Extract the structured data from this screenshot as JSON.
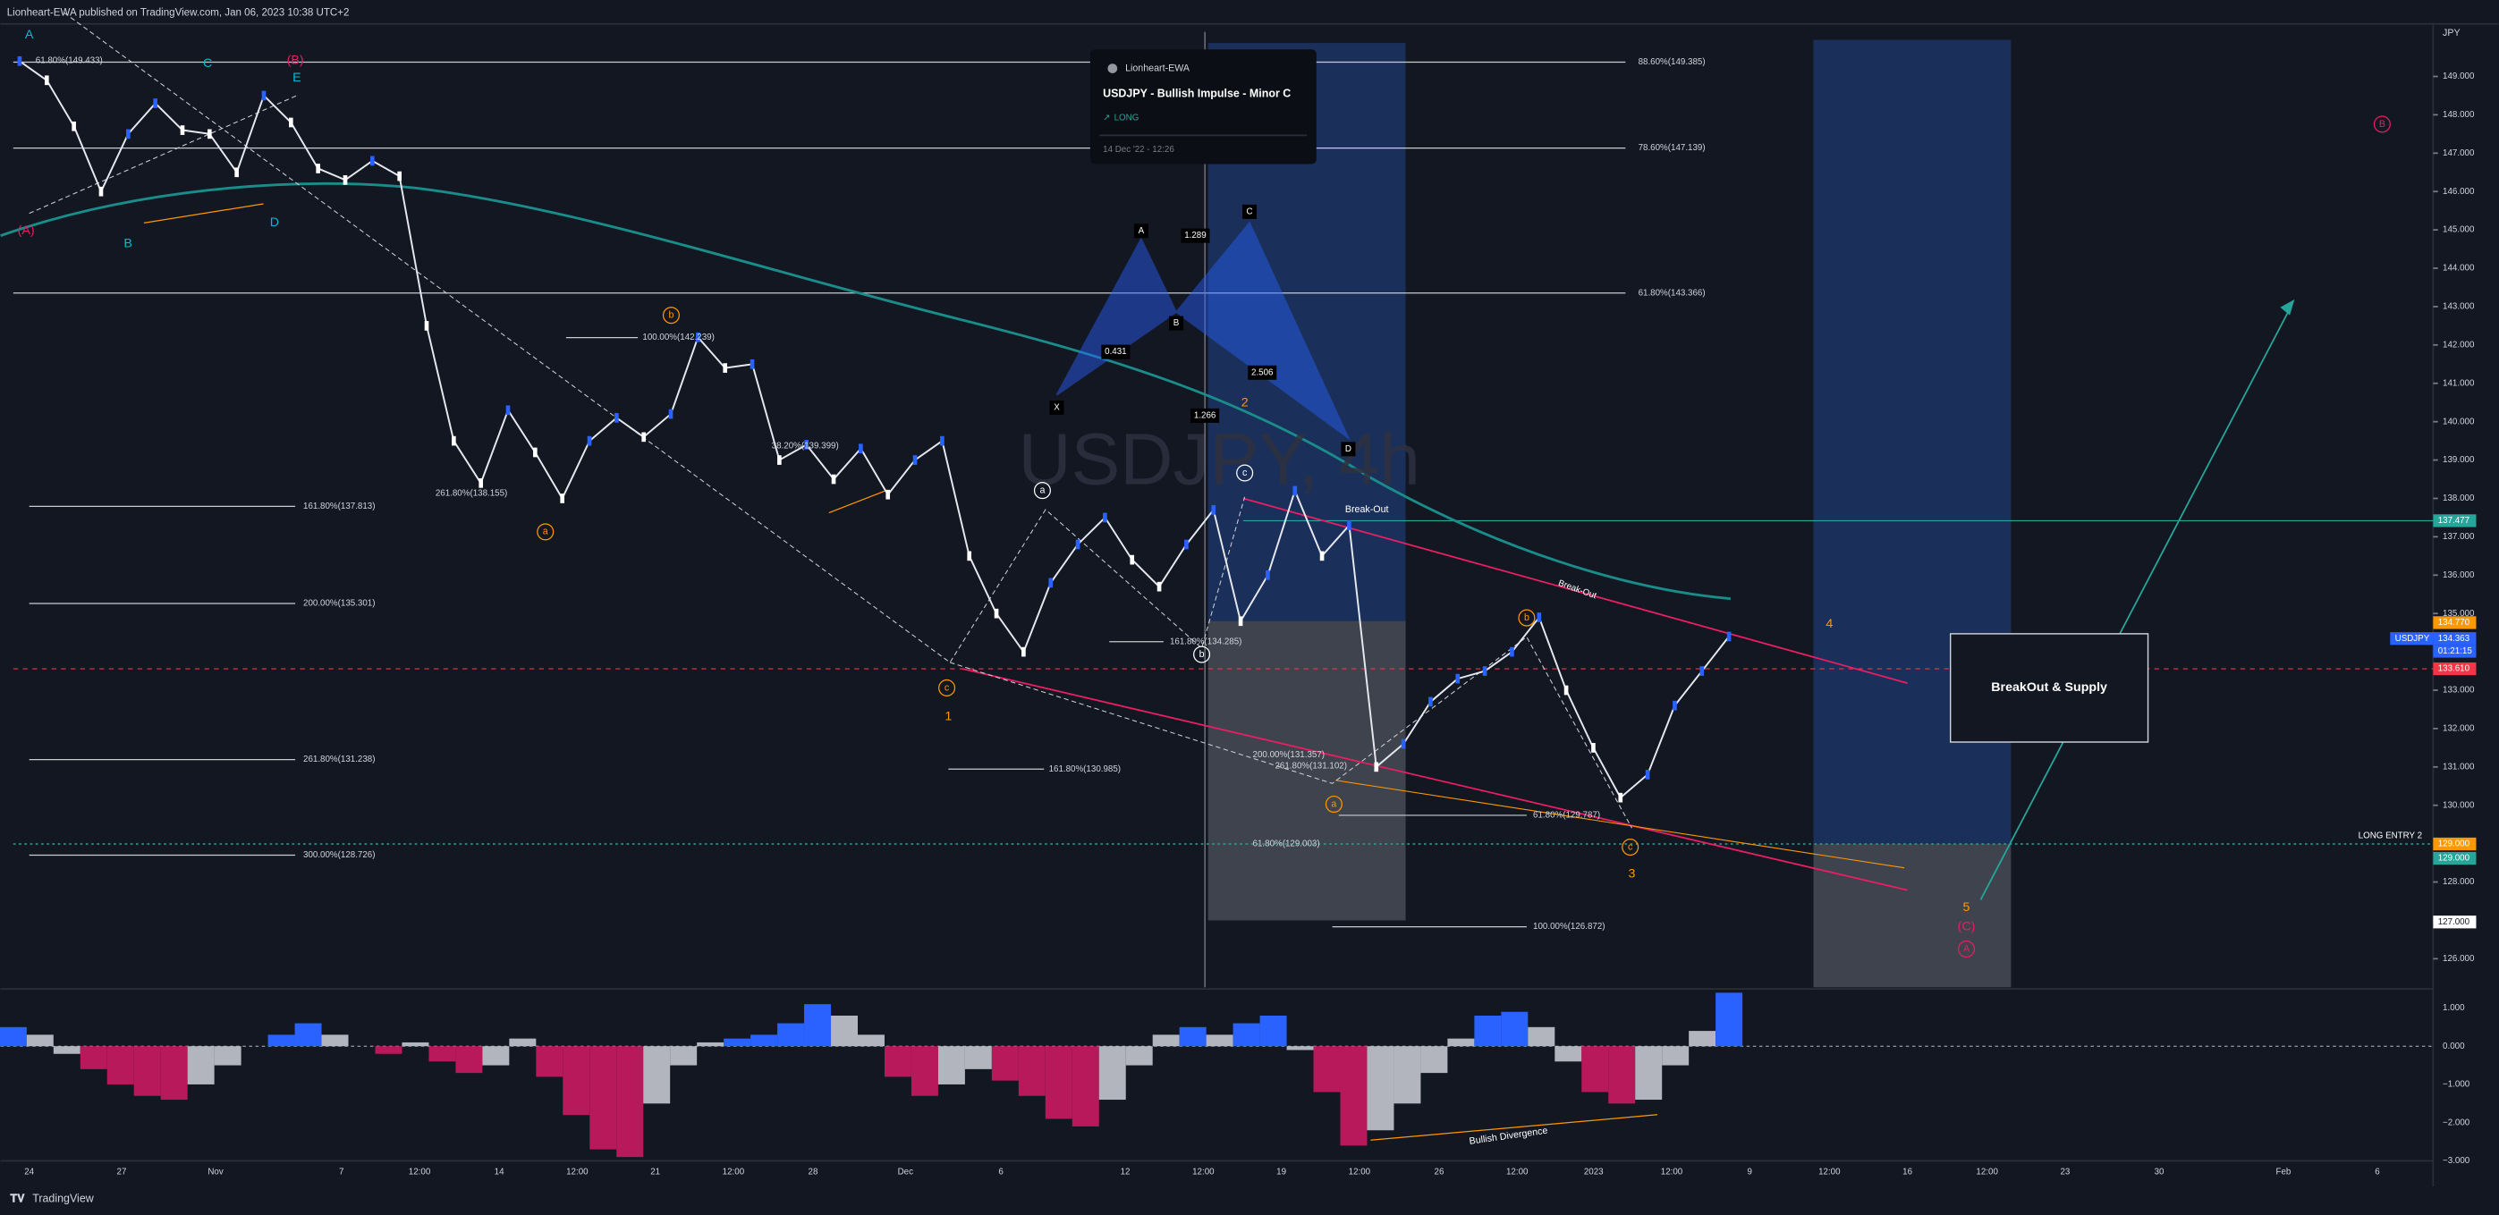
{
  "header": {
    "publisher": "Lionheart-EWA published on TradingView.com, Jan 06, 2023 10:38 UTC+2"
  },
  "footer": {
    "brand": "TradingView"
  },
  "watermark": "USDJPY, 4h",
  "card": {
    "author": "Lionheart-EWA",
    "title": "USDJPY - Bullish Impulse - Minor C",
    "side": "LONG",
    "date": "14 Dec '22 - 12:26"
  },
  "price_axis": {
    "currency": "JPY",
    "ticks": [
      {
        "value": 126,
        "label": "126.000"
      },
      {
        "value": 127,
        "label": "127.000"
      },
      {
        "value": 128,
        "label": "128.000"
      },
      {
        "value": 129,
        "label": "129.000"
      },
      {
        "value": 130,
        "label": "130.000"
      },
      {
        "value": 131,
        "label": "131.000"
      },
      {
        "value": 132,
        "label": "132.000"
      },
      {
        "value": 133,
        "label": "133.000"
      },
      {
        "value": 134,
        "label": "134.000"
      },
      {
        "value": 135,
        "label": "135.000"
      },
      {
        "value": 136,
        "label": "136.000"
      },
      {
        "value": 137,
        "label": "137.000"
      },
      {
        "value": 138,
        "label": "138.000"
      },
      {
        "value": 139,
        "label": "139.000"
      },
      {
        "value": 140,
        "label": "140.000"
      },
      {
        "value": 141,
        "label": "141.000"
      },
      {
        "value": 142,
        "label": "142.000"
      },
      {
        "value": 143,
        "label": "143.000"
      },
      {
        "value": 144,
        "label": "144.000"
      },
      {
        "value": 145,
        "label": "145.000"
      },
      {
        "value": 146,
        "label": "146.000"
      },
      {
        "value": 147,
        "label": "147.000"
      },
      {
        "value": 148,
        "label": "148.000"
      },
      {
        "value": 149,
        "label": "149.000"
      }
    ]
  },
  "time_axis": {
    "labels": [
      "24",
      "27",
      "Nov",
      "7",
      "12:00",
      "14",
      "12:00",
      "21",
      "12:00",
      "28",
      "Dec",
      "6",
      "12",
      "12:00",
      "19",
      "12:00",
      "26",
      "12:00",
      "2023",
      "12:00",
      "9",
      "12:00",
      "16",
      "12:00",
      "23",
      "30",
      "Feb",
      "6"
    ]
  },
  "price_badges": [
    "137.477",
    "134.770",
    "USDJPY",
    "134.363",
    "01:21:15",
    "133.610",
    "129.000",
    "129.000",
    "127.000"
  ],
  "price_series": {
    "name": "USDJPY",
    "values": [
      149.4,
      148.9,
      147.7,
      146.0,
      147.5,
      148.3,
      147.6,
      147.5,
      146.5,
      148.5,
      147.8,
      146.6,
      146.3,
      146.8,
      146.4,
      142.5,
      139.5,
      138.4,
      140.3,
      139.2,
      138.0,
      139.5,
      140.1,
      139.6,
      140.2,
      142.2,
      141.4,
      141.5,
      139.0,
      139.4,
      138.5,
      139.3,
      138.1,
      139.0,
      139.5,
      136.5,
      135.0,
      134.0,
      135.8,
      136.8,
      137.5,
      136.4,
      135.7,
      136.8,
      137.7,
      134.8,
      136.0,
      138.2,
      136.5,
      137.3,
      131.0,
      131.6,
      132.7,
      133.3,
      133.5,
      134.0,
      134.9,
      133.0,
      131.5,
      130.2,
      130.8,
      132.6,
      133.5,
      134.4
    ]
  },
  "oscillator": {
    "ticks": [
      {
        "value": 1,
        "label": "1.000"
      },
      {
        "value": 0,
        "label": "0.000"
      },
      {
        "value": -1,
        "label": "−1.000"
      },
      {
        "value": -2,
        "label": "−2.000"
      },
      {
        "value": -3,
        "label": "−3.000"
      }
    ],
    "values": [
      0.5,
      0.3,
      -0.2,
      -0.6,
      -1.0,
      -1.3,
      -1.4,
      -1.0,
      -0.5,
      0.0,
      0.3,
      0.6,
      0.3,
      0.0,
      -0.2,
      0.1,
      -0.4,
      -0.7,
      -0.5,
      0.2,
      -0.8,
      -1.8,
      -2.7,
      -2.9,
      -1.5,
      -0.5,
      0.1,
      0.2,
      0.3,
      0.6,
      1.1,
      0.8,
      0.3,
      -0.8,
      -1.3,
      -1.0,
      -0.6,
      -0.9,
      -1.3,
      -1.9,
      -2.1,
      -1.4,
      -0.5,
      0.3,
      0.5,
      0.3,
      0.6,
      0.8,
      -0.1,
      -1.2,
      -2.6,
      -2.2,
      -1.5,
      -0.7,
      0.2,
      0.8,
      0.9,
      0.5,
      -0.4,
      -1.2,
      -1.5,
      -1.4,
      -0.5,
      0.4,
      1.4
    ]
  },
  "annotations": {
    "fib_levels": [
      "61.80%(149.433)",
      "88.60%(149.385)",
      "78.60%(147.139)",
      "61.80%(143.366)",
      "100.00%(142.239)",
      "261.80%(138.155)",
      "161.80%(137.813)",
      "38.20%(139.399)",
      "200.00%(135.301)",
      "161.80%(134.285)",
      "261.80%(131.238)",
      "161.80%(130.985)",
      "200.00%(131.357)",
      "261.80%(131.102)",
      "61.80%(129.787)",
      "300.00%(128.726)",
      "61.80%(129.003)",
      "100.00%(126.872)"
    ],
    "waves": [
      "A",
      "C",
      "(B)",
      "E",
      "B",
      "D",
      "(A)",
      "b",
      "a",
      "c",
      "1",
      "a",
      "b",
      "c",
      "2",
      "a",
      "b",
      "c",
      "3",
      "4",
      "5",
      "(C)",
      "A",
      "B"
    ],
    "harmonic": [
      "X",
      "A",
      "B",
      "C",
      "D",
      "1.289",
      "0.431",
      "2.506",
      "1.266"
    ],
    "notes": [
      "Break-Out",
      "Break-Out",
      "Bullish Divergence",
      "BreakOut & Supply",
      "LONG ENTRY 2"
    ]
  }
}
